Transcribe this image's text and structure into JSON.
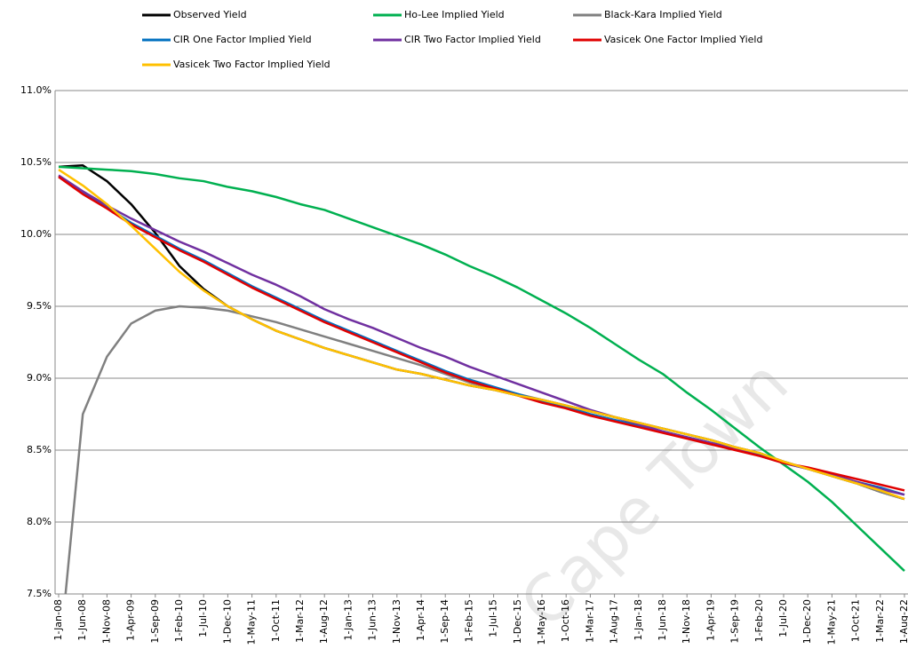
{
  "chart_data": {
    "type": "line",
    "watermark": "Cape Town",
    "categories": [
      "1-Jan-08",
      "1-Jun-08",
      "1-Nov-08",
      "1-Apr-09",
      "1-Sep-09",
      "1-Feb-10",
      "1-Jul-10",
      "1-Dec-10",
      "1-May-11",
      "1-Oct-11",
      "1-Mar-12",
      "1-Aug-12",
      "1-Jan-13",
      "1-Jun-13",
      "1-Nov-13",
      "1-Apr-14",
      "1-Sep-14",
      "1-Feb-15",
      "1-Jul-15",
      "1-Dec-15",
      "1-May-16",
      "1-Oct-16",
      "1-Mar-17",
      "1-Aug-17",
      "1-Jan-18",
      "1-Jun-18",
      "1-Nov-18",
      "1-Apr-19",
      "1-Sep-19",
      "1-Feb-20",
      "1-Jul-20",
      "1-Dec-20",
      "1-May-21",
      "1-Oct-21",
      "1-Mar-22",
      "1-Aug-22"
    ],
    "series": [
      {
        "name": "Observed Yield",
        "color": "#000000",
        "values": [
          10.47,
          10.48,
          10.37,
          10.21,
          10.01,
          9.78,
          9.62,
          9.5,
          9.41,
          9.33,
          9.27,
          9.21,
          9.16,
          9.11,
          9.06,
          9.03,
          8.99,
          8.95,
          8.92,
          8.88,
          8.85,
          8.81,
          8.77,
          8.73,
          8.69,
          8.65,
          8.61,
          8.57,
          8.52,
          8.48,
          8.42,
          8.37,
          8.32,
          8.27,
          8.21,
          8.16
        ]
      },
      {
        "name": "Ho-Lee Implied Yield",
        "color": "#00b050",
        "values": [
          10.47,
          10.46,
          10.45,
          10.44,
          10.42,
          10.39,
          10.37,
          10.33,
          10.3,
          10.26,
          10.21,
          10.17,
          10.11,
          10.05,
          9.99,
          9.93,
          9.86,
          9.78,
          9.71,
          9.63,
          9.54,
          9.45,
          9.35,
          9.24,
          9.13,
          9.03,
          8.9,
          8.78,
          8.65,
          8.52,
          8.4,
          8.28,
          8.14,
          7.98,
          7.82,
          7.66
        ]
      },
      {
        "name": "Black-Kara Implied Yield",
        "color": "#808080",
        "values": [
          7.0,
          8.75,
          9.15,
          9.38,
          9.47,
          9.5,
          9.49,
          9.47,
          9.43,
          9.39,
          9.34,
          9.29,
          9.24,
          9.19,
          9.14,
          9.09,
          9.03,
          8.97,
          8.93,
          8.89,
          8.85,
          8.81,
          8.77,
          8.73,
          8.69,
          8.65,
          8.61,
          8.57,
          8.52,
          8.48,
          8.42,
          8.37,
          8.32,
          8.27,
          8.21,
          8.16
        ]
      },
      {
        "name": "CIR One Factor Implied Yield",
        "color": "#0070c0",
        "values": [
          10.4,
          10.29,
          10.19,
          10.08,
          9.99,
          9.9,
          9.82,
          9.73,
          9.64,
          9.56,
          9.48,
          9.4,
          9.33,
          9.26,
          9.19,
          9.12,
          9.05,
          8.99,
          8.94,
          8.89,
          8.84,
          8.8,
          8.75,
          8.71,
          8.67,
          8.63,
          8.59,
          8.55,
          8.51,
          8.47,
          8.41,
          8.37,
          8.33,
          8.28,
          8.24,
          8.19
        ]
      },
      {
        "name": "CIR Two Factor Implied Yield",
        "color": "#7030a0",
        "values": [
          10.41,
          10.3,
          10.2,
          10.11,
          10.03,
          9.95,
          9.88,
          9.8,
          9.72,
          9.65,
          9.57,
          9.48,
          9.41,
          9.35,
          9.28,
          9.21,
          9.15,
          9.08,
          9.02,
          8.96,
          8.9,
          8.84,
          8.78,
          8.73,
          8.68,
          8.63,
          8.59,
          8.55,
          8.51,
          8.46,
          8.41,
          8.37,
          8.33,
          8.28,
          8.23,
          8.19
        ]
      },
      {
        "name": "Vasicek One Factor Implied Yield",
        "color": "#e00000",
        "values": [
          10.4,
          10.28,
          10.18,
          10.07,
          9.98,
          9.89,
          9.81,
          9.72,
          9.63,
          9.55,
          9.47,
          9.39,
          9.32,
          9.25,
          9.18,
          9.11,
          9.04,
          8.98,
          8.93,
          8.88,
          8.83,
          8.79,
          8.74,
          8.7,
          8.66,
          8.62,
          8.58,
          8.54,
          8.5,
          8.46,
          8.41,
          8.38,
          8.34,
          8.3,
          8.26,
          8.22
        ]
      },
      {
        "name": "Vasicek Two Factor Implied Yield",
        "color": "#ffc000",
        "values": [
          10.45,
          10.34,
          10.21,
          10.06,
          9.9,
          9.74,
          9.61,
          9.5,
          9.41,
          9.33,
          9.27,
          9.21,
          9.16,
          9.11,
          9.06,
          9.03,
          8.99,
          8.95,
          8.92,
          8.88,
          8.85,
          8.81,
          8.77,
          8.73,
          8.69,
          8.65,
          8.61,
          8.57,
          8.52,
          8.48,
          8.42,
          8.37,
          8.32,
          8.27,
          8.22,
          8.16
        ]
      }
    ],
    "ylim": [
      7.5,
      11.0
    ],
    "yticks": [
      {
        "value": 7.5,
        "label": "7.5%"
      },
      {
        "value": 8.0,
        "label": "8.0%"
      },
      {
        "value": 8.5,
        "label": "8.5%"
      },
      {
        "value": 9.0,
        "label": "9.0%"
      },
      {
        "value": 9.5,
        "label": "9.5%"
      },
      {
        "value": 10.0,
        "label": "10.0%"
      },
      {
        "value": 10.5,
        "label": "10.5%"
      },
      {
        "value": 11.0,
        "label": "11.0%"
      }
    ],
    "grid": true
  }
}
